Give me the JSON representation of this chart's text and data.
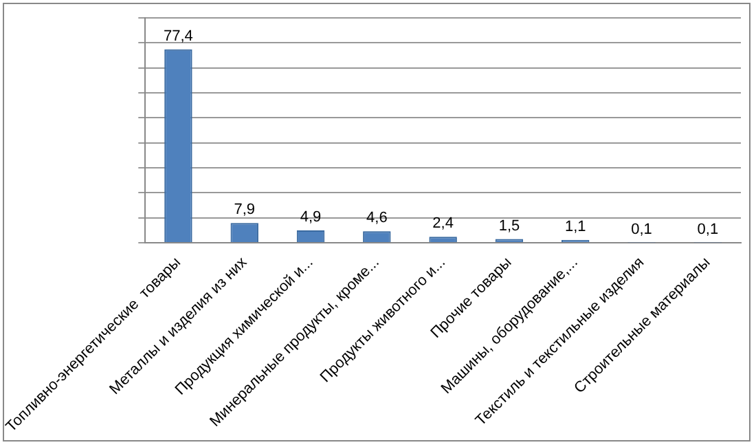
{
  "chart_data": {
    "type": "bar",
    "categories": [
      "Топливно-энергетические  товары",
      "Металлы и изделия из них",
      "Продукция химической и...",
      "Минеральные продукты, кроме...",
      "Продукты животного и...",
      "Прочие товары",
      "Машины, оборудование,...",
      "Текстиль и текстильные изделия",
      "Строительные материалы"
    ],
    "values": [
      77.4,
      7.9,
      4.9,
      4.6,
      2.4,
      1.5,
      1.1,
      0.1,
      0.1
    ],
    "value_labels": [
      "77,4",
      "7,9",
      "4,9",
      "4,6",
      "2,4",
      "1,5",
      "1,1",
      "0,1",
      "0,1"
    ],
    "color": "#4f81bd",
    "ylim": [
      0,
      90
    ],
    "yticks": [
      {
        "value": 0,
        "label": null
      },
      {
        "value": 10,
        "label": null
      },
      {
        "value": 20,
        "label": null
      },
      {
        "value": 30,
        "label": null
      },
      {
        "value": 40,
        "label": null
      },
      {
        "value": 50,
        "label": null
      },
      {
        "value": 60,
        "label": null
      },
      {
        "value": 70,
        "label": null
      },
      {
        "value": 80,
        "label": null
      },
      {
        "value": 90,
        "label": null
      }
    ],
    "grid": "y",
    "tick_labels": "x"
  }
}
